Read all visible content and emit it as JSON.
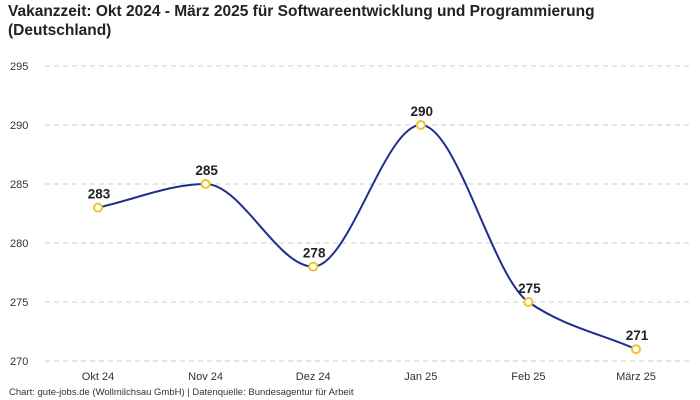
{
  "chart_data": {
    "type": "line",
    "title": "Vakanzzeit: Okt 2024 - März 2025 für Softwareentwicklung und Programmierung (Deutschland)",
    "xlabel": "",
    "ylabel": "",
    "categories": [
      "Okt 24",
      "Nov 24",
      "Dez 24",
      "Jan 25",
      "Feb 25",
      "März 25"
    ],
    "series": [
      {
        "name": "Vakanzzeit",
        "values": [
          283,
          285,
          278,
          290,
          275,
          271
        ]
      }
    ],
    "ylim": [
      270,
      295
    ],
    "yticks": [
      270,
      275,
      280,
      285,
      290,
      295
    ],
    "grid": true,
    "colors": {
      "line": "#1f2f8c",
      "marker_stroke": "#f2c230",
      "marker_fill": "#ffffff",
      "grid": "#cccccc"
    }
  },
  "footer": {
    "source": "Chart: gute-jobs.de (Wollmilchsau GmbH) | Datenquelle: Bundesagentur für Arbeit"
  }
}
